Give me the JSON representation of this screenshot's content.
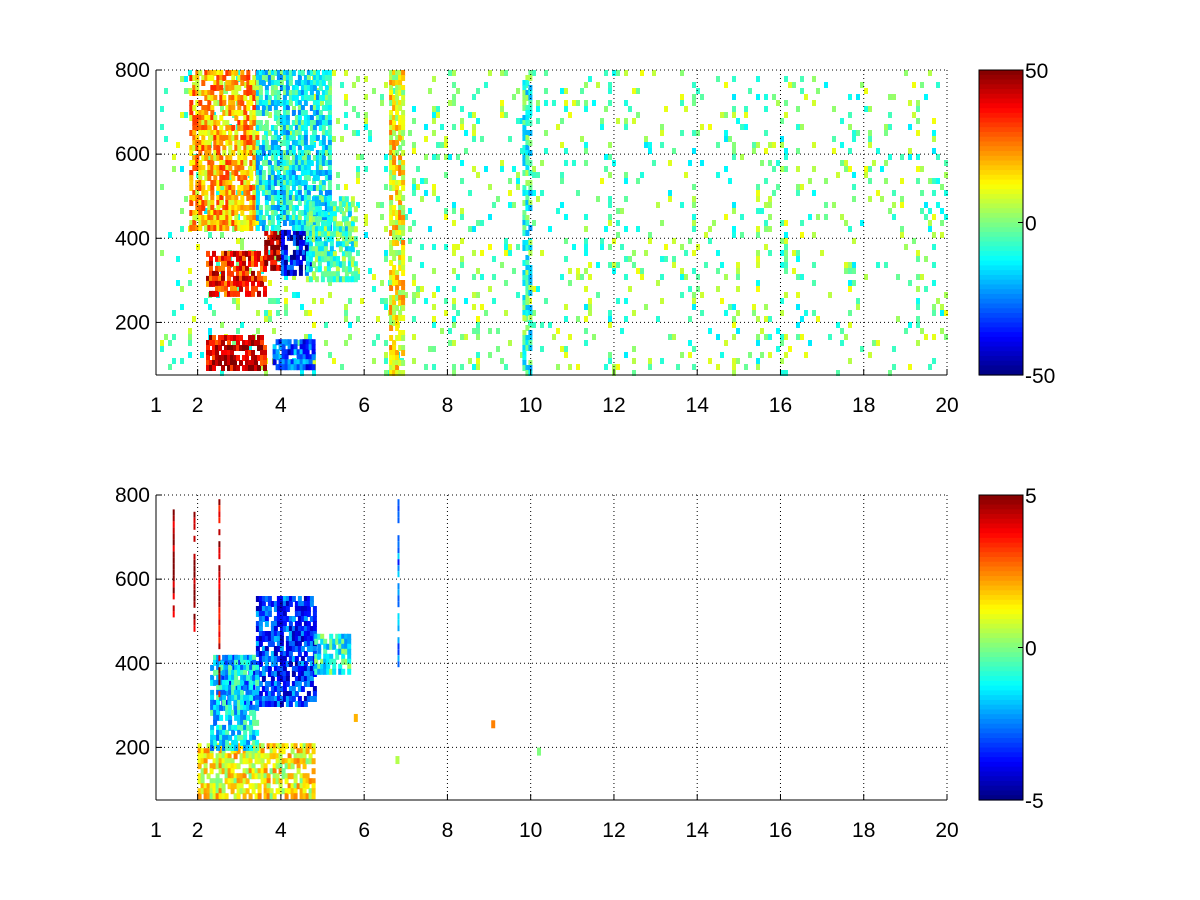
{
  "chart_data": [
    {
      "type": "heatmap",
      "title": "",
      "xlabel": "",
      "ylabel": "",
      "xlim": [
        1,
        20
      ],
      "ylim": [
        75,
        800
      ],
      "x_ticks": [
        1,
        2,
        4,
        6,
        8,
        10,
        12,
        14,
        16,
        18,
        20
      ],
      "x_tick_labels": [
        "1",
        "2",
        "4",
        "6",
        "8",
        "10",
        "12",
        "14",
        "16",
        "18",
        "20"
      ],
      "y_ticks": [
        200,
        400,
        600,
        800
      ],
      "y_tick_labels": [
        "200",
        "400",
        "600",
        "800"
      ],
      "grid": true,
      "colormap": "jet",
      "colorbar": {
        "min": -50,
        "max": 50,
        "ticks": [
          50,
          0,
          -50
        ],
        "tick_labels": [
          "50",
          "0",
          "-50"
        ]
      },
      "regions": [
        {
          "x": [
            2.2,
            3.6
          ],
          "y": [
            270,
            370
          ],
          "value": 35
        },
        {
          "x": [
            2.2,
            3.6
          ],
          "y": [
            90,
            170
          ],
          "value": 42
        },
        {
          "x": [
            3.6,
            4.0
          ],
          "y": [
            330,
            420
          ],
          "value": 45
        },
        {
          "x": [
            4.0,
            4.7
          ],
          "y": [
            320,
            420
          ],
          "value": -38
        },
        {
          "x": [
            3.8,
            4.8
          ],
          "y": [
            90,
            160
          ],
          "value": -30
        },
        {
          "x": [
            1.8,
            3.4
          ],
          "y": [
            420,
            800
          ],
          "value": 20
        },
        {
          "x": [
            3.4,
            5.2
          ],
          "y": [
            420,
            800
          ],
          "value": -12
        },
        {
          "x": [
            4.6,
            5.8
          ],
          "y": [
            300,
            500
          ],
          "value": -6
        },
        {
          "x": [
            6.6,
            6.9
          ],
          "y": [
            75,
            800
          ],
          "value": 12
        },
        {
          "x": [
            9.8,
            10.0
          ],
          "y": [
            75,
            800
          ],
          "value": -8
        }
      ],
      "background_density": 0.09,
      "background_value_range": [
        -15,
        12
      ]
    },
    {
      "type": "heatmap",
      "title": "",
      "xlabel": "",
      "ylabel": "",
      "xlim": [
        1,
        20
      ],
      "ylim": [
        75,
        800
      ],
      "x_ticks": [
        1,
        2,
        4,
        6,
        8,
        10,
        12,
        14,
        16,
        18,
        20
      ],
      "x_tick_labels": [
        "1",
        "2",
        "4",
        "6",
        "8",
        "10",
        "12",
        "14",
        "16",
        "18",
        "20"
      ],
      "y_ticks": [
        200,
        400,
        600,
        800
      ],
      "y_tick_labels": [
        "200",
        "400",
        "600",
        "800"
      ],
      "grid": true,
      "colormap": "jet",
      "colorbar": {
        "min": -5,
        "max": 5,
        "ticks": [
          5,
          0,
          -5
        ],
        "tick_labels": [
          "5",
          "0",
          "-5"
        ]
      },
      "regions": [
        {
          "x": [
            2.5,
            3.3
          ],
          "y": [
            300,
            420
          ],
          "value": -3
        },
        {
          "x": [
            3.4,
            4.8
          ],
          "y": [
            300,
            560
          ],
          "value": -3.2
        },
        {
          "x": [
            2.0,
            4.8
          ],
          "y": [
            90,
            210
          ],
          "value": 1.2
        },
        {
          "x": [
            2.3,
            3.4
          ],
          "y": [
            200,
            420
          ],
          "value": -1.5
        },
        {
          "x": [
            4.8,
            5.6
          ],
          "y": [
            380,
            470
          ],
          "value": -1.0
        }
      ],
      "streaks": [
        {
          "x": 1.4,
          "y": [
            520,
            780
          ],
          "value": 4.5
        },
        {
          "x": 1.9,
          "y": [
            480,
            760
          ],
          "value": 4.8
        },
        {
          "x": 2.5,
          "y": [
            300,
            790
          ],
          "value": 4.2
        },
        {
          "x": 6.8,
          "y": [
            400,
            790
          ],
          "value": -2.5
        }
      ],
      "spots": [
        {
          "x": 5.8,
          "y": 270,
          "value": 2
        },
        {
          "x": 6.8,
          "y": 170,
          "value": 0.5
        },
        {
          "x": 9.1,
          "y": 255,
          "value": 2.5
        },
        {
          "x": 10.2,
          "y": 190,
          "value": 0
        }
      ]
    }
  ]
}
